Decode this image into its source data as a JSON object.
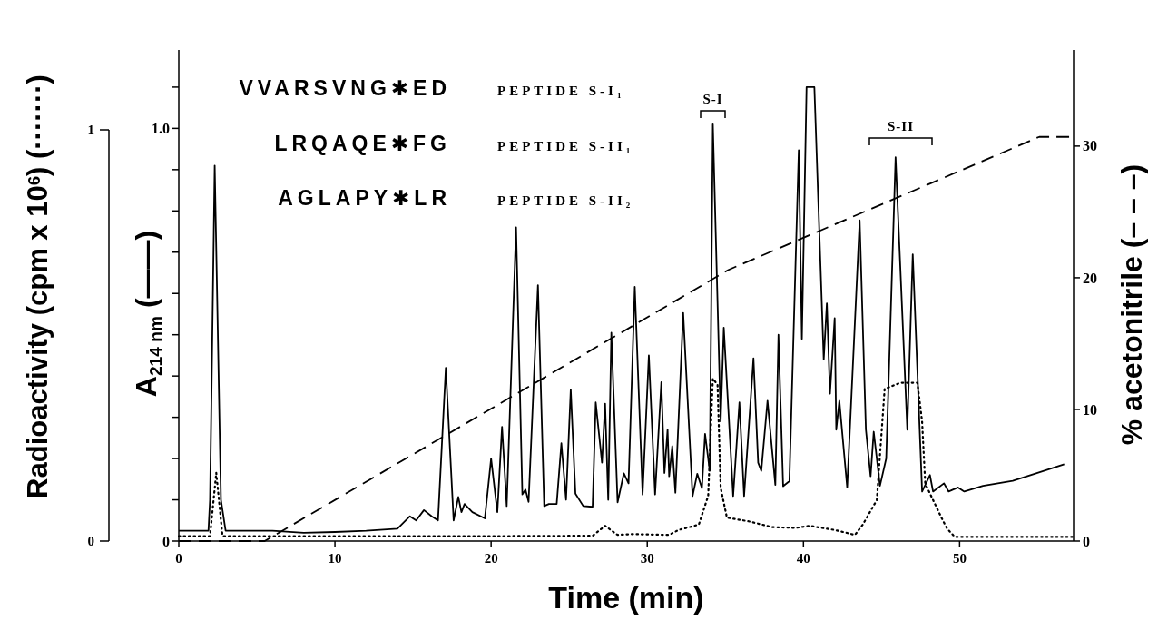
{
  "chart_data": {
    "type": "line",
    "xlabel": "Time (min)",
    "ylabel": "A$_{214 nm}$ (——)",
    "y2label": "% acetonitrile (– – –)",
    "y3label": "Radioactivity (cpm x 10$^{6}$) (·······)",
    "xlim": [
      0,
      57.3
    ],
    "xticks": [
      0,
      10,
      20,
      30,
      40,
      50
    ],
    "ylim": [
      0,
      1.19
    ],
    "yticks": [
      0,
      {
        "value": 0.1,
        "label": null
      },
      {
        "value": 0.2,
        "label": null
      },
      {
        "value": 0.3,
        "label": null
      },
      {
        "value": 0.4,
        "label": null
      },
      {
        "value": 0.5,
        "label": null
      },
      {
        "value": 0.6,
        "label": null
      },
      {
        "value": 0.7,
        "label": null
      },
      {
        "value": 0.8,
        "label": null
      },
      {
        "value": 0.9,
        "label": null
      },
      {
        "value": 1,
        "label": "1.0"
      },
      {
        "value": 1.1,
        "label": null
      }
    ],
    "y2lim": [
      0,
      37.3
    ],
    "y2ticks": [
      0,
      10,
      20,
      30
    ],
    "y3lim": [
      0,
      1
    ],
    "y3ticks": [
      0,
      1
    ],
    "annotations": [
      "VVARSVNG✱ED",
      "PEPTIDE S-I$_{1}$",
      "LRQAQE✱FG",
      "PEPTIDE S-II$_{1}$",
      "AGLAPY✱LR",
      "PEPTIDE S-II$_{2}$",
      "S-I",
      "S-II"
    ],
    "series": [
      {
        "color": "#000000",
        "line_style": "solid",
        "x": [
          0,
          1.9,
          2.0,
          2.3,
          2.7,
          3.0,
          4,
          6,
          8,
          10,
          12,
          14,
          14.8,
          15.2,
          15.7,
          16.2,
          16.6,
          17.1,
          17.6,
          17.9,
          18.1,
          18.3,
          18.8,
          19.6,
          20.0,
          20.4,
          20.7,
          21.0,
          21.6,
          22.0,
          22.2,
          22.4,
          23.0,
          23.4,
          23.7,
          24.2,
          24.5,
          24.8,
          25.1,
          25.4,
          25.9,
          26.5,
          26.7,
          27.1,
          27.3,
          27.5,
          27.7,
          28.1,
          28.5,
          28.8,
          29.2,
          29.7,
          30.1,
          30.5,
          30.9,
          31.1,
          31.3,
          31.4,
          31.6,
          31.8,
          32.3,
          32.9,
          33.2,
          33.5,
          33.7,
          34.0,
          34.2,
          34.7,
          34.9,
          35.5,
          35.9,
          36.2,
          36.8,
          37.1,
          37.3,
          37.7,
          38.2,
          38.4,
          38.7,
          39.1,
          39.7,
          39.9,
          40.2,
          40.7,
          41.3,
          41.5,
          41.7,
          42.0,
          42.1,
          42.3,
          42.8,
          43.6,
          44.0,
          44.3,
          44.5,
          44.9,
          45.3,
          45.9,
          46.65,
          47.0,
          47.6,
          48.1,
          48.3,
          49.0,
          49.3,
          49.9,
          50.3,
          51.5,
          53.4,
          54.9,
          56.7
        ],
        "values": [
          0.025,
          0.025,
          0.1,
          0.91,
          0.1,
          0.025,
          0.025,
          0.025,
          0.02,
          0.022,
          0.025,
          0.03,
          0.06,
          0.05,
          0.075,
          0.06,
          0.05,
          0.42,
          0.05,
          0.107,
          0.07,
          0.09,
          0.07,
          0.055,
          0.2,
          0.07,
          0.277,
          0.085,
          0.76,
          0.113,
          0.125,
          0.095,
          0.62,
          0.085,
          0.09,
          0.09,
          0.237,
          0.1,
          0.367,
          0.115,
          0.085,
          0.083,
          0.336,
          0.19,
          0.333,
          0.1,
          0.505,
          0.094,
          0.164,
          0.14,
          0.616,
          0.113,
          0.45,
          0.113,
          0.385,
          0.165,
          0.27,
          0.157,
          0.23,
          0.117,
          0.553,
          0.109,
          0.163,
          0.128,
          0.26,
          0.17,
          1.01,
          0.29,
          0.517,
          0.109,
          0.336,
          0.109,
          0.443,
          0.19,
          0.17,
          0.34,
          0.136,
          0.5,
          0.133,
          0.145,
          0.947,
          0.49,
          1.1,
          1.1,
          0.44,
          0.576,
          0.357,
          0.54,
          0.27,
          0.34,
          0.13,
          0.777,
          0.27,
          0.157,
          0.265,
          0.134,
          0.2,
          0.93,
          0.27,
          0.695,
          0.12,
          0.16,
          0.12,
          0.14,
          0.12,
          0.13,
          0.12,
          0.134,
          0.146,
          0.164,
          0.186
        ]
      },
      {
        "color": "#000000",
        "line_style": "dotted",
        "axis": "y3",
        "x": [
          0,
          2.0,
          2.4,
          2.8,
          3.2,
          10,
          20,
          26.5,
          27.3,
          28.1,
          29,
          31.4,
          32,
          33.3,
          33.9,
          34.2,
          34.5,
          34.7,
          35.1,
          36.5,
          38,
          39.5,
          40.4,
          42,
          43.3,
          43.8,
          44.7,
          45.2,
          46.2,
          47.3,
          47.6,
          47.8,
          48.8,
          49.2,
          49.7,
          57.3
        ],
        "values": [
          0.012,
          0.012,
          0.166,
          0.012,
          0.012,
          0.012,
          0.012,
          0.013,
          0.037,
          0.015,
          0.017,
          0.015,
          0.027,
          0.04,
          0.11,
          0.395,
          0.38,
          0.13,
          0.057,
          0.048,
          0.034,
          0.032,
          0.037,
          0.027,
          0.015,
          0.04,
          0.1,
          0.37,
          0.385,
          0.385,
          0.29,
          0.14,
          0.06,
          0.03,
          0.01,
          0.01
        ]
      },
      {
        "color": "#000000",
        "line_style": "dashed",
        "axis": "y2",
        "x": [
          0,
          5.5,
          35.2,
          55.1,
          57.3
        ],
        "values": [
          0,
          0,
          20.6,
          30.7,
          30.7
        ]
      }
    ]
  }
}
